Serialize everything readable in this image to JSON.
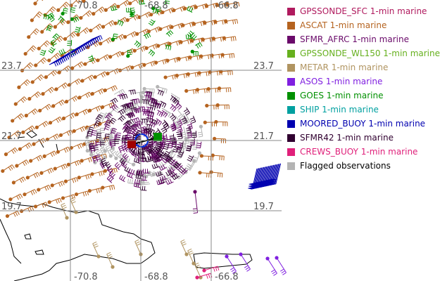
{
  "map": {
    "lon_labels_top": [
      "-70.8",
      "-68.8",
      "-66.8"
    ],
    "lon_labels_bottom": [
      "-70.8",
      "-68.8",
      "-66.8"
    ],
    "lat_labels": [
      "23.7",
      "21.7",
      "19.7"
    ]
  },
  "legend": [
    {
      "label": "GPSSONDE_SFC 1-min marine",
      "color": "#b01a5e"
    },
    {
      "label": "ASCAT 1-min marine",
      "color": "#b5631f"
    },
    {
      "label": "SFMR_AFRC 1-min marine",
      "color": "#6a0a6a"
    },
    {
      "label": "GPSSONDE_WL150 1-min marine",
      "color": "#66b01e"
    },
    {
      "label": "METAR 1-min marine",
      "color": "#b09460"
    },
    {
      "label": "ASOS 1-min marine",
      "color": "#8020e0"
    },
    {
      "label": "GOES 1-min marine",
      "color": "#009000"
    },
    {
      "label": "SHIP 1-min marine",
      "color": "#00a0a0"
    },
    {
      "label": "MOORED_BUOY 1-min marine",
      "color": "#0000b0"
    },
    {
      "label": "SFMR42 1-min marine",
      "color": "#300030"
    },
    {
      "label": "CREWS_BUOY 1-min marine",
      "color": "#e0207a"
    },
    {
      "label": "Flagged observations",
      "color": "#b4b4b4",
      "text_color": "#000000"
    }
  ]
}
